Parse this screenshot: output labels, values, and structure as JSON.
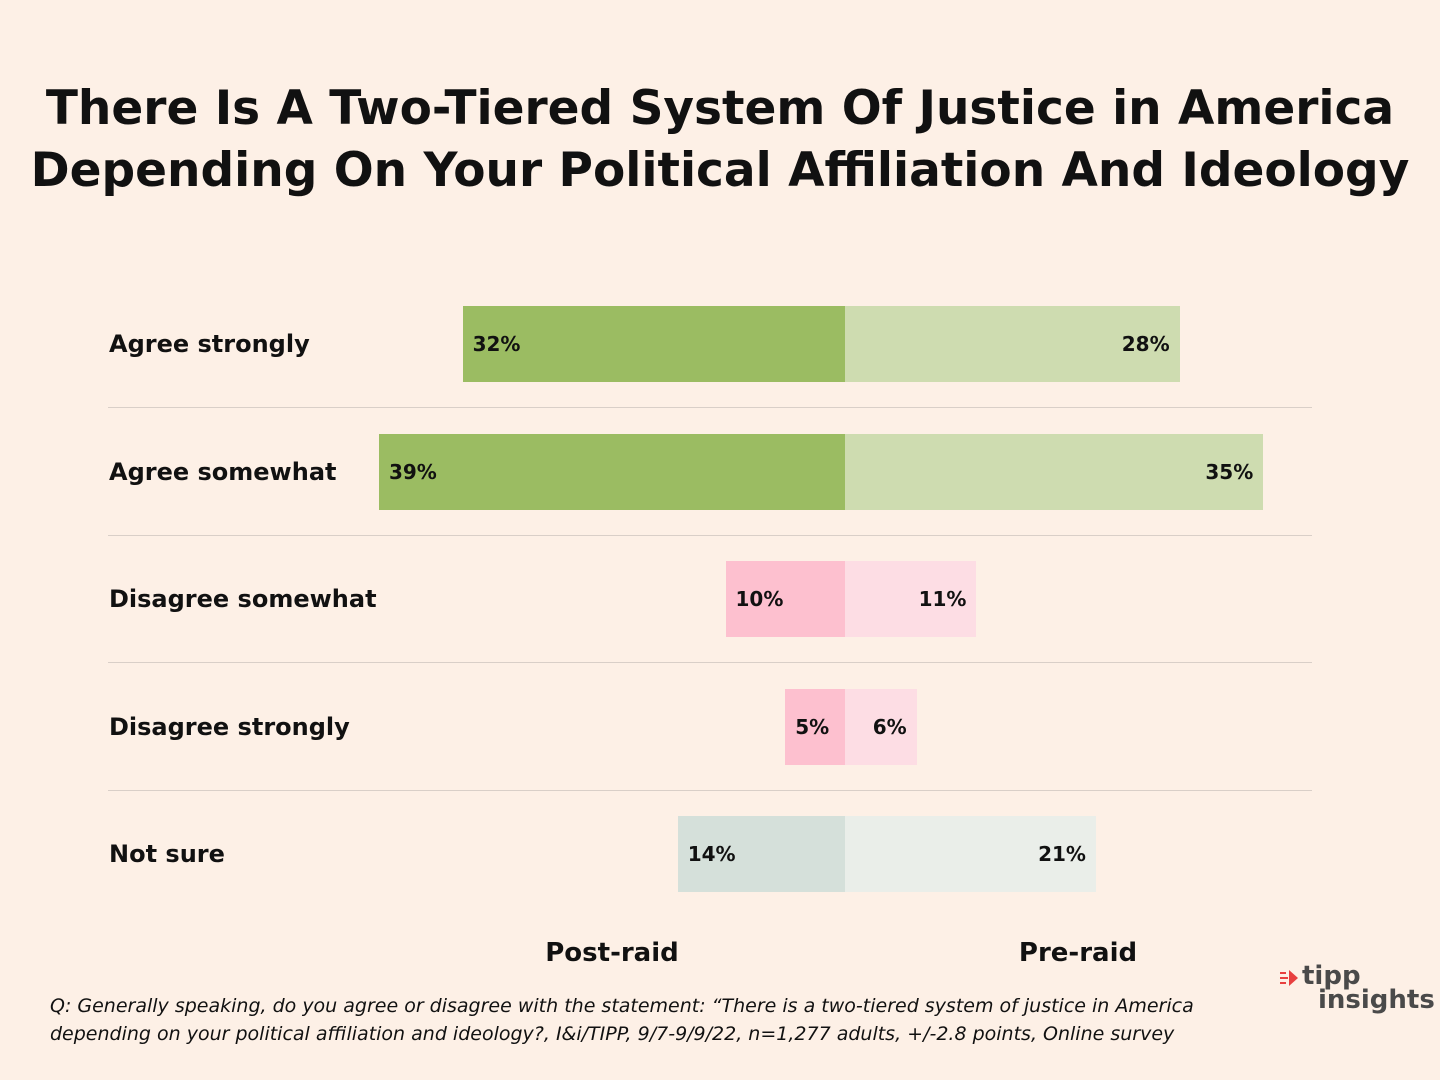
{
  "title_lines": [
    "There Is A Two-Tiered System Of Justice in America",
    "Depending On Your Political Affiliation And Ideology"
  ],
  "chart_data": {
    "type": "bar",
    "orientation": "horizontal-diverging",
    "categories": [
      "Agree strongly",
      "Agree somewhat",
      "Disagree somewhat",
      "Disagree strongly",
      "Not sure"
    ],
    "series": [
      {
        "name": "Post-raid",
        "values": [
          32,
          39,
          10,
          5,
          14
        ],
        "labels": [
          "32%",
          "39%",
          "10%",
          "5%",
          "14%"
        ]
      },
      {
        "name": "Pre-raid",
        "values": [
          28,
          35,
          11,
          6,
          21
        ],
        "labels": [
          "28%",
          "35%",
          "11%",
          "6%",
          "21%"
        ]
      }
    ],
    "unit": "%",
    "colors": {
      "agree_post": "#9bbc62",
      "agree_pre": "#cedcb0",
      "disagree_post": "#fdc0cf",
      "disagree_pre": "#fddde4",
      "notsure_post": "#d5e0da",
      "notsure_pre": "#eaeee9"
    },
    "grid": false,
    "legend": "bottom"
  },
  "footnote_lines": [
    "Q: Generally speaking, do you agree or disagree with the statement: “There is a two-tiered system of  justice in America",
    "depending on your political affiliation and ideology?, I&i/TIPP, 9/7-9/9/22, n=1,277 adults, +/-2.8 points, Online survey"
  ],
  "logo": {
    "line1": "tipp",
    "line2": "insights",
    "accent": "#e8403f"
  }
}
